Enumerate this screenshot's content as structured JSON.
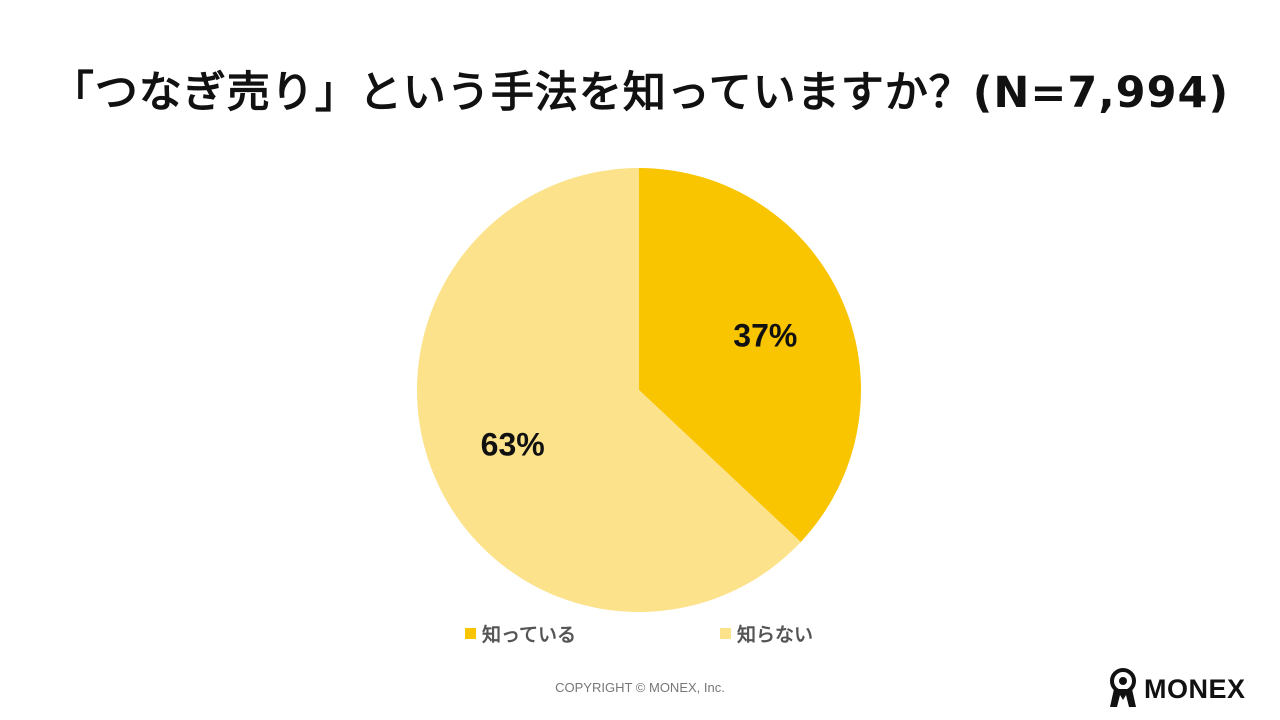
{
  "title": "「つなぎ売り」という手法を知っていますか？(N=7,994)",
  "chart_data": {
    "type": "pie",
    "title": "「つなぎ売り」という手法を知っていますか？(N=7,994)",
    "slices": [
      {
        "label": "知っている",
        "value": 37,
        "display": "37%",
        "color": "#F9C400"
      },
      {
        "label": "知らない",
        "value": 63,
        "display": "63%",
        "color": "#FCE28A"
      }
    ],
    "start_angle": "12 o'clock",
    "direction": "clockwise",
    "legend": "bottom"
  },
  "legend": {
    "items": [
      {
        "label": "知っている",
        "color": "#F9C400"
      },
      {
        "label": "知らない",
        "color": "#FCE28A"
      }
    ]
  },
  "footer": {
    "copyright": "COPYRIGHT © MONEX, Inc.",
    "logo_text": "MONEX",
    "logo_icon": "monex-figure-icon"
  }
}
